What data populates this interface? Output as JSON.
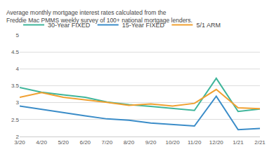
{
  "chart_data": {
    "type": "line",
    "subtitle": "Average monthly mortgage interest rates calculated from the Freddie Mac PMMS weekly survey of 100+ national mortgage lenders.",
    "categories": [
      "3/20",
      "4/20",
      "5/20",
      "6/20",
      "7/20",
      "8/20",
      "9/20",
      "10/20",
      "11/20",
      "12/20",
      "1/21",
      "2/21"
    ],
    "series": [
      {
        "name": "30-Year FIXED",
        "color": "#3fb59a",
        "values": [
          3.45,
          3.31,
          3.23,
          3.16,
          3.02,
          2.94,
          2.89,
          2.83,
          2.77,
          3.72,
          2.74,
          2.81
        ]
      },
      {
        "name": "15-Year FIXED",
        "color": "#3a8cc8",
        "values": [
          2.9,
          2.8,
          2.7,
          2.61,
          2.52,
          2.48,
          2.4,
          2.36,
          2.31,
          3.19,
          2.2,
          2.24
        ]
      },
      {
        "name": "5/1 ARM",
        "color": "#f0a030",
        "values": [
          3.16,
          3.3,
          3.16,
          3.09,
          3.01,
          2.92,
          2.96,
          2.9,
          2.98,
          3.39,
          2.85,
          2.82
        ]
      }
    ],
    "ylim": [
      2,
      5
    ],
    "yticks": [
      2,
      2.5,
      3,
      3.5,
      4,
      4.5,
      5
    ],
    "grid": true,
    "legend": "top left"
  }
}
